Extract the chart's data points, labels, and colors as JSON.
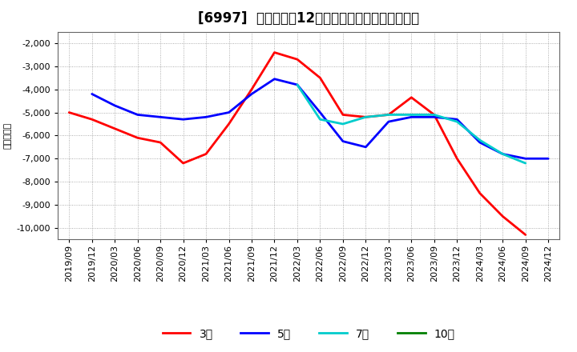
{
  "title": "[6997]  当期純利益12か月移動合計の平均値の推移",
  "ylabel": "（百万円）",
  "background_color": "#ffffff",
  "plot_bg_color": "#ffffff",
  "grid_color": "#aaaaaa",
  "ylim": [
    -10500,
    -1500
  ],
  "yticks": [
    -10000,
    -9000,
    -8000,
    -7000,
    -6000,
    -5000,
    -4000,
    -3000,
    -2000
  ],
  "x_labels": [
    "2019/09",
    "2019/12",
    "2020/03",
    "2020/06",
    "2020/09",
    "2020/12",
    "2021/03",
    "2021/06",
    "2021/09",
    "2021/12",
    "2022/03",
    "2022/06",
    "2022/09",
    "2022/12",
    "2023/03",
    "2023/06",
    "2023/09",
    "2023/12",
    "2024/03",
    "2024/06",
    "2024/09",
    "2024/12"
  ],
  "series": {
    "3年": {
      "color": "#ff0000",
      "linewidth": 2.0,
      "values": [
        -5000,
        -5300,
        -5700,
        -6100,
        -6300,
        -7200,
        -6800,
        -5500,
        -4000,
        -2400,
        -2700,
        -3500,
        -5100,
        -5200,
        -5100,
        -4350,
        -5100,
        -7000,
        -8500,
        -9500,
        -10300,
        null
      ]
    },
    "5年": {
      "color": "#0000ff",
      "linewidth": 2.0,
      "values": [
        null,
        -4200,
        -4700,
        -5100,
        -5200,
        -5300,
        -5200,
        -5000,
        -4200,
        -3550,
        -3800,
        -5000,
        -6250,
        -6500,
        -5400,
        -5200,
        -5200,
        -5300,
        -6300,
        -6800,
        -7000,
        -7000
      ]
    },
    "7年": {
      "color": "#00cccc",
      "linewidth": 2.0,
      "values": [
        null,
        null,
        null,
        null,
        null,
        null,
        null,
        null,
        null,
        null,
        -3800,
        -5300,
        -5500,
        -5200,
        -5100,
        -5100,
        -5100,
        -5400,
        -6200,
        -6800,
        -7200,
        null
      ]
    },
    "10年": {
      "color": "#008000",
      "linewidth": 2.0,
      "values": [
        null,
        null,
        null,
        null,
        null,
        null,
        null,
        null,
        null,
        null,
        null,
        null,
        null,
        null,
        null,
        null,
        null,
        null,
        null,
        null,
        null,
        null
      ]
    }
  },
  "legend_order": [
    "3年",
    "5年",
    "7年",
    "10年"
  ],
  "title_fontsize": 12,
  "axis_fontsize": 8,
  "legend_fontsize": 10
}
